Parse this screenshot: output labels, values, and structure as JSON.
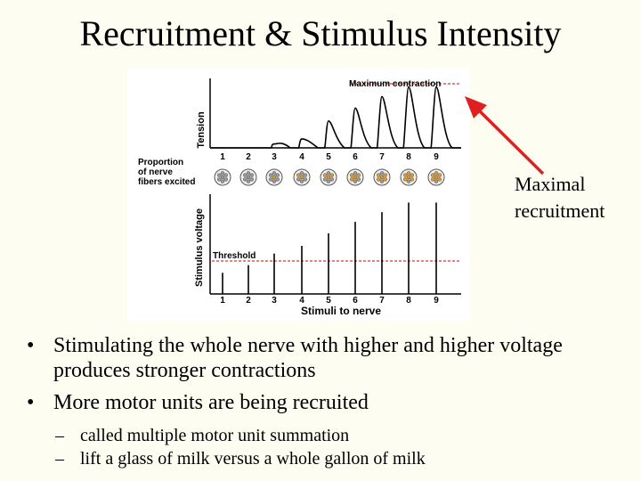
{
  "title": "Recruitment & Stimulus Intensity",
  "figure": {
    "tension_axis_label": "Tension",
    "max_contraction_label": "Maximum contraction",
    "proportion_label": [
      "Proportion",
      "of nerve",
      "fibers excited"
    ],
    "voltage_axis_label": "Stimulus voltage",
    "threshold_label": "Threshold",
    "x_axis_label": "Stimuli to nerve",
    "stimuli": [
      "1",
      "2",
      "3",
      "4",
      "5",
      "6",
      "7",
      "8",
      "9"
    ],
    "relative_voltage": [
      0.22,
      0.3,
      0.42,
      0.5,
      0.63,
      0.75,
      0.85,
      0.95,
      0.95
    ],
    "relative_tension": [
      0,
      0,
      0.06,
      0.14,
      0.42,
      0.62,
      0.8,
      0.95,
      0.95
    ],
    "fibers_excited": [
      0,
      0,
      1,
      2,
      3,
      4,
      5,
      6,
      6
    ],
    "colors": {
      "threshold_line": "#d23a3a",
      "excited_fiber": "#e09a2a",
      "arrow": "#e02020"
    }
  },
  "callout": [
    "Maximal",
    "recruitment"
  ],
  "bullets": [
    {
      "text": "Stimulating the whole nerve with higher and higher voltage produces stronger contractions"
    },
    {
      "text": "More motor units are being recruited"
    }
  ],
  "sub_bullets": [
    {
      "text": "called multiple motor unit summation"
    },
    {
      "text": "lift a glass of milk versus a whole gallon of milk"
    }
  ]
}
